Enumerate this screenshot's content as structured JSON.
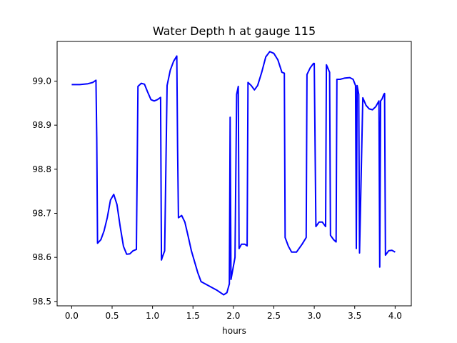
{
  "chart_data": {
    "type": "line",
    "title": "Water Depth h at gauge 115",
    "xlabel": "hours",
    "ylabel": "",
    "xlim": [
      -0.18,
      4.2
    ],
    "ylim": [
      98.49,
      99.09
    ],
    "xticks": [
      0.0,
      0.5,
      1.0,
      1.5,
      2.0,
      2.5,
      3.0,
      3.5,
      4.0
    ],
    "xtick_labels": [
      "0.0",
      "0.5",
      "1.0",
      "1.5",
      "2.0",
      "2.5",
      "3.0",
      "3.5",
      "4.0"
    ],
    "yticks": [
      98.5,
      98.6,
      98.7,
      98.8,
      98.9,
      99.0
    ],
    "ytick_labels": [
      "98.5",
      "98.6",
      "98.7",
      "98.8",
      "98.9",
      "99.0"
    ],
    "grid": false,
    "colors": {
      "line": "#0000ff",
      "axes": "#000000",
      "background": "#ffffff"
    },
    "series": [
      {
        "x": [
          0.0,
          0.1,
          0.2,
          0.26,
          0.3,
          0.31,
          0.32,
          0.36,
          0.4,
          0.44,
          0.48,
          0.52,
          0.56,
          0.6,
          0.64,
          0.68,
          0.72,
          0.76,
          0.8,
          0.81,
          0.82,
          0.86,
          0.9,
          0.94,
          0.98,
          1.02,
          1.06,
          1.1,
          1.11,
          1.12,
          1.14,
          1.15,
          1.18,
          1.22,
          1.26,
          1.3,
          1.31,
          1.32,
          1.36,
          1.4,
          1.44,
          1.48,
          1.52,
          1.56,
          1.6,
          1.7,
          1.8,
          1.88,
          1.92,
          1.95,
          1.96,
          1.97,
          2.01,
          2.02,
          2.04,
          2.06,
          2.07,
          2.1,
          2.14,
          2.17,
          2.18,
          2.22,
          2.26,
          2.3,
          2.35,
          2.4,
          2.45,
          2.5,
          2.55,
          2.6,
          2.63,
          2.64,
          2.68,
          2.72,
          2.78,
          2.85,
          2.9,
          2.91,
          2.95,
          2.99,
          3.0,
          3.02,
          3.06,
          3.1,
          3.14,
          3.15,
          3.19,
          3.2,
          3.24,
          3.27,
          3.28,
          3.32,
          3.38,
          3.44,
          3.48,
          3.51,
          3.52,
          3.53,
          3.55,
          3.56,
          3.6,
          3.64,
          3.68,
          3.72,
          3.76,
          3.8,
          3.81,
          3.82,
          3.84,
          3.86,
          3.87,
          3.88,
          3.92,
          3.96,
          4.0
        ],
        "y": [
          98.992,
          98.992,
          98.994,
          98.997,
          99.002,
          98.87,
          98.632,
          98.64,
          98.66,
          98.69,
          98.73,
          98.743,
          98.72,
          98.67,
          98.625,
          98.607,
          98.608,
          98.615,
          98.618,
          98.8,
          98.988,
          98.995,
          98.993,
          98.975,
          98.958,
          98.955,
          98.958,
          98.963,
          98.594,
          98.6,
          98.61,
          98.615,
          98.99,
          99.025,
          99.045,
          99.057,
          98.85,
          98.69,
          98.695,
          98.68,
          98.648,
          98.615,
          98.59,
          98.565,
          98.545,
          98.535,
          98.525,
          98.515,
          98.52,
          98.54,
          98.918,
          98.55,
          98.59,
          98.6,
          98.97,
          98.988,
          98.62,
          98.63,
          98.63,
          98.626,
          98.997,
          98.99,
          98.98,
          98.99,
          99.02,
          99.055,
          99.067,
          99.063,
          99.048,
          99.02,
          99.018,
          98.645,
          98.625,
          98.612,
          98.612,
          98.63,
          98.645,
          99.015,
          99.03,
          99.04,
          99.04,
          98.67,
          98.68,
          98.68,
          98.67,
          99.037,
          99.02,
          98.65,
          98.64,
          98.635,
          99.004,
          99.004,
          99.007,
          99.008,
          99.004,
          98.99,
          98.62,
          98.99,
          98.97,
          98.61,
          98.962,
          98.945,
          98.937,
          98.935,
          98.942,
          98.955,
          98.578,
          98.955,
          98.96,
          98.97,
          98.972,
          98.605,
          98.615,
          98.616,
          98.612
        ]
      }
    ]
  }
}
